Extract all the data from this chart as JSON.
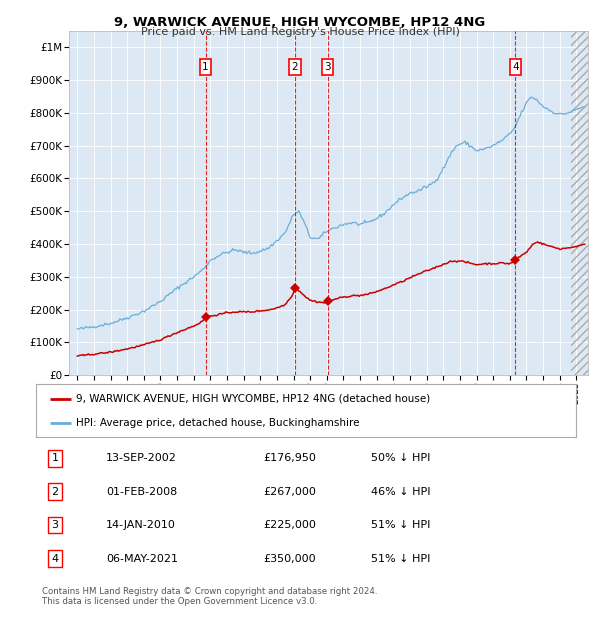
{
  "title": "9, WARWICK AVENUE, HIGH WYCOMBE, HP12 4NG",
  "subtitle": "Price paid vs. HM Land Registry's House Price Index (HPI)",
  "background_color": "#ffffff",
  "plot_bg_color": "#dce9f5",
  "hpi_color": "#6aaed6",
  "price_color": "#cc0000",
  "transactions": [
    {
      "date_x": 2002.71,
      "price": 176950,
      "label": "1"
    },
    {
      "date_x": 2008.08,
      "price": 267000,
      "label": "2"
    },
    {
      "date_x": 2010.04,
      "price": 225000,
      "label": "3"
    },
    {
      "date_x": 2021.34,
      "price": 350000,
      "label": "4"
    }
  ],
  "legend_entries": [
    {
      "label": "9, WARWICK AVENUE, HIGH WYCOMBE, HP12 4NG (detached house)",
      "color": "#cc0000"
    },
    {
      "label": "HPI: Average price, detached house, Buckinghamshire",
      "color": "#6aaed6"
    }
  ],
  "table_rows": [
    {
      "num": "1",
      "date": "13-SEP-2002",
      "price": "£176,950",
      "note": "50% ↓ HPI"
    },
    {
      "num": "2",
      "date": "01-FEB-2008",
      "price": "£267,000",
      "note": "46% ↓ HPI"
    },
    {
      "num": "3",
      "date": "14-JAN-2010",
      "price": "£225,000",
      "note": "51% ↓ HPI"
    },
    {
      "num": "4",
      "date": "06-MAY-2021",
      "price": "£350,000",
      "note": "51% ↓ HPI"
    }
  ],
  "footer": "Contains HM Land Registry data © Crown copyright and database right 2024.\nThis data is licensed under the Open Government Licence v3.0.",
  "ylim": [
    0,
    1050000
  ],
  "xlim": [
    1994.5,
    2025.7
  ],
  "yticks": [
    0,
    100000,
    200000,
    300000,
    400000,
    500000,
    600000,
    700000,
    800000,
    900000,
    1000000
  ],
  "ytick_labels": [
    "£0",
    "£100K",
    "£200K",
    "£300K",
    "£400K",
    "£500K",
    "£600K",
    "£700K",
    "£800K",
    "£900K",
    "£1M"
  ]
}
